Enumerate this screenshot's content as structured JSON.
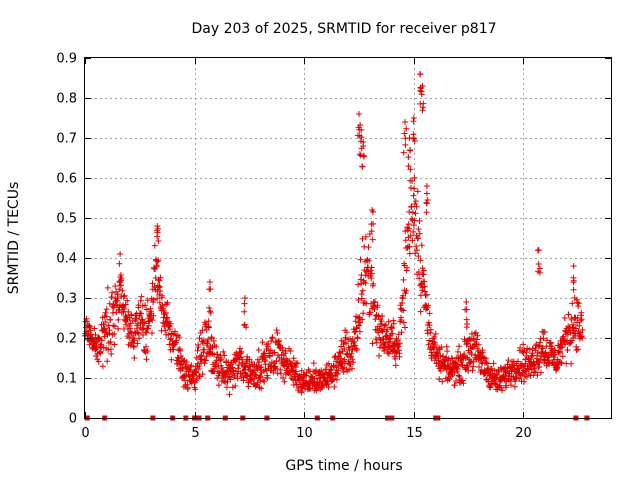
{
  "chart_data": {
    "type": "scatter",
    "title": "Day 203 of 2025, SRMTID for receiver p817",
    "xlabel": "GPS time / hours",
    "ylabel": "SRMTID / TECUs",
    "xlim": [
      0,
      24
    ],
    "ylim": [
      0,
      0.9
    ],
    "xticks": [
      0,
      5,
      10,
      15,
      20
    ],
    "yticks": [
      0,
      0.1,
      0.2,
      0.3,
      0.4,
      0.5,
      0.6,
      0.7,
      0.8,
      0.9
    ],
    "grid": true,
    "legend": "none",
    "marker": "plus",
    "color": "#e00000",
    "series": [
      {
        "name": "SRMTID p817",
        "envelope_hours": [
          0.0,
          0.3,
          0.6,
          0.9,
          1.2,
          1.5,
          1.6,
          1.9,
          2.2,
          2.5,
          2.8,
          3.1,
          3.2,
          3.5,
          3.8,
          4.1,
          4.4,
          4.7,
          5.0,
          5.3,
          5.6,
          5.9,
          6.2,
          6.5,
          6.8,
          7.1,
          7.4,
          7.7,
          8.0,
          8.3,
          8.6,
          8.9,
          9.2,
          9.5,
          9.8,
          10.1,
          10.4,
          10.7,
          11.0,
          11.3,
          11.6,
          11.9,
          12.2,
          12.4,
          12.6,
          12.8,
          13.0,
          13.2,
          13.4,
          13.7,
          14.0,
          14.3,
          14.5,
          14.7,
          14.9,
          15.1,
          15.3,
          15.5,
          15.7,
          15.9,
          16.1,
          16.4,
          16.7,
          17.0,
          17.3,
          17.6,
          17.9,
          18.2,
          18.5,
          18.8,
          19.1,
          19.4,
          19.7,
          20.0,
          20.3,
          20.6,
          20.9,
          21.2,
          21.5,
          21.8,
          22.1,
          22.4,
          22.7
        ],
        "center_tecu": [
          0.22,
          0.2,
          0.17,
          0.22,
          0.25,
          0.28,
          0.29,
          0.24,
          0.2,
          0.26,
          0.22,
          0.28,
          0.36,
          0.3,
          0.22,
          0.18,
          0.14,
          0.1,
          0.11,
          0.16,
          0.2,
          0.14,
          0.12,
          0.11,
          0.12,
          0.14,
          0.12,
          0.11,
          0.13,
          0.14,
          0.15,
          0.17,
          0.13,
          0.12,
          0.1,
          0.09,
          0.1,
          0.09,
          0.1,
          0.11,
          0.14,
          0.17,
          0.16,
          0.2,
          0.32,
          0.38,
          0.35,
          0.28,
          0.22,
          0.2,
          0.19,
          0.18,
          0.28,
          0.42,
          0.55,
          0.52,
          0.4,
          0.3,
          0.22,
          0.18,
          0.14,
          0.13,
          0.12,
          0.13,
          0.14,
          0.18,
          0.16,
          0.13,
          0.11,
          0.09,
          0.1,
          0.12,
          0.13,
          0.14,
          0.13,
          0.16,
          0.18,
          0.16,
          0.14,
          0.18,
          0.22,
          0.24,
          0.22
        ],
        "spread_tecu": [
          0.05,
          0.06,
          0.06,
          0.07,
          0.08,
          0.09,
          0.09,
          0.07,
          0.06,
          0.07,
          0.07,
          0.08,
          0.09,
          0.08,
          0.06,
          0.05,
          0.05,
          0.04,
          0.04,
          0.06,
          0.07,
          0.05,
          0.04,
          0.04,
          0.05,
          0.06,
          0.05,
          0.04,
          0.05,
          0.05,
          0.06,
          0.06,
          0.05,
          0.04,
          0.04,
          0.03,
          0.04,
          0.03,
          0.03,
          0.04,
          0.05,
          0.06,
          0.05,
          0.07,
          0.14,
          0.16,
          0.13,
          0.1,
          0.06,
          0.05,
          0.05,
          0.05,
          0.1,
          0.14,
          0.15,
          0.14,
          0.12,
          0.08,
          0.06,
          0.05,
          0.04,
          0.04,
          0.04,
          0.04,
          0.05,
          0.06,
          0.05,
          0.04,
          0.04,
          0.03,
          0.04,
          0.04,
          0.04,
          0.05,
          0.04,
          0.06,
          0.06,
          0.05,
          0.04,
          0.05,
          0.07,
          0.07,
          0.06
        ],
        "peaks": [
          {
            "x": 1.6,
            "y": 0.41
          },
          {
            "x": 3.3,
            "y": 0.48
          },
          {
            "x": 5.7,
            "y": 0.34
          },
          {
            "x": 7.3,
            "y": 0.3
          },
          {
            "x": 12.5,
            "y": 0.76
          },
          {
            "x": 12.6,
            "y": 0.72
          },
          {
            "x": 12.7,
            "y": 0.69
          },
          {
            "x": 13.1,
            "y": 0.52
          },
          {
            "x": 14.6,
            "y": 0.74
          },
          {
            "x": 14.8,
            "y": 0.7
          },
          {
            "x": 15.0,
            "y": 0.75
          },
          {
            "x": 15.3,
            "y": 0.86
          },
          {
            "x": 15.4,
            "y": 0.83
          },
          {
            "x": 15.6,
            "y": 0.58
          },
          {
            "x": 17.4,
            "y": 0.29
          },
          {
            "x": 20.7,
            "y": 0.42
          },
          {
            "x": 22.3,
            "y": 0.38
          }
        ],
        "zero_markers_hours": [
          0.1,
          0.9,
          3.1,
          4.0,
          4.6,
          5.0,
          5.2,
          5.6,
          6.4,
          7.2,
          8.3,
          10.6,
          11.3,
          13.8,
          13.9,
          14.0,
          16.0,
          16.1,
          22.4,
          22.9
        ]
      }
    ]
  }
}
